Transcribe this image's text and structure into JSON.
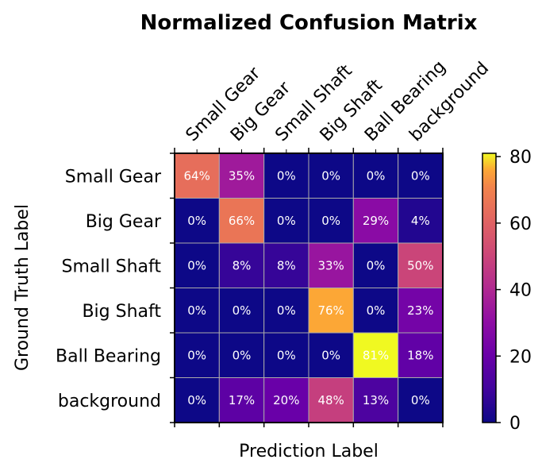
{
  "chart_data": {
    "type": "heatmap",
    "title": "Normalized Confusion Matrix",
    "xlabel": "Prediction Label",
    "ylabel": "Ground Truth Label",
    "x_categories": [
      "Small Gear",
      "Big Gear",
      "Small Shaft",
      "Big Shaft",
      "Ball Bearing",
      "background"
    ],
    "y_categories": [
      "Small Gear",
      "Big Gear",
      "Small Shaft",
      "Big Shaft",
      "Ball Bearing",
      "background"
    ],
    "values": [
      [
        64,
        35,
        0,
        0,
        0,
        0
      ],
      [
        0,
        66,
        0,
        0,
        29,
        4
      ],
      [
        0,
        8,
        8,
        33,
        0,
        50
      ],
      [
        0,
        0,
        0,
        76,
        0,
        23
      ],
      [
        0,
        0,
        0,
        0,
        81,
        18
      ],
      [
        0,
        17,
        20,
        48,
        13,
        0
      ]
    ],
    "cell_labels": [
      [
        "64%",
        "35%",
        "0%",
        "0%",
        "0%",
        "0%"
      ],
      [
        "0%",
        "66%",
        "0%",
        "0%",
        "29%",
        "4%"
      ],
      [
        "0%",
        "8%",
        "8%",
        "33%",
        "0%",
        "50%"
      ],
      [
        "0%",
        "0%",
        "0%",
        "76%",
        "0%",
        "23%"
      ],
      [
        "0%",
        "0%",
        "0%",
        "0%",
        "81%",
        "18%"
      ],
      [
        "0%",
        "17%",
        "20%",
        "48%",
        "13%",
        "0%"
      ]
    ],
    "colormap": "plasma",
    "colorbar": {
      "range": [
        0,
        81
      ],
      "ticks": [
        0,
        20,
        40,
        60,
        80
      ]
    },
    "grid": true,
    "legend": "colorbar-right"
  }
}
